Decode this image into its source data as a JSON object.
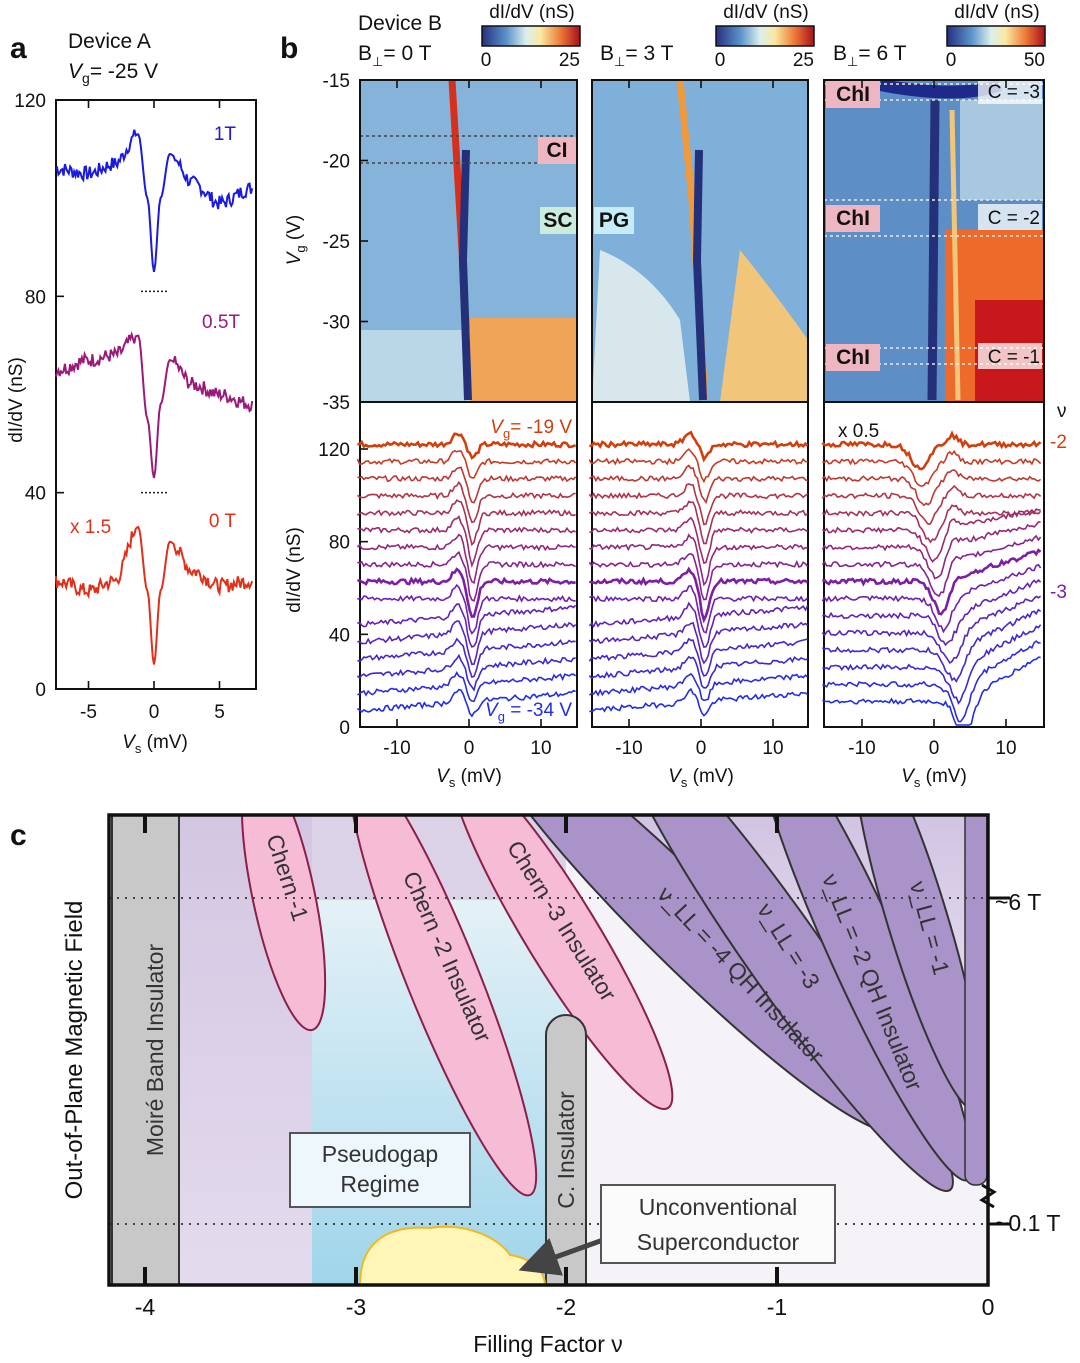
{
  "panel_labels": {
    "a": "a",
    "b": "b",
    "c": "c"
  },
  "chart_data": [
    {
      "id": "panel-a",
      "type": "line",
      "title": "Device  A",
      "subtitle": {
        "main": "V",
        "sub": "g",
        "rest": "= -25 V"
      },
      "xlabel": {
        "main": "V",
        "sub": "s",
        "rest": " (mV)"
      },
      "ylabel": "dI/dV (nS)",
      "xlim": [
        -7.5,
        7.5
      ],
      "ylim": [
        0,
        120
      ],
      "xticks": [
        "-5",
        "0",
        "5"
      ],
      "xtick_values": [
        -5,
        0,
        5
      ],
      "yticks": [
        "0",
        "40",
        "80",
        "120"
      ],
      "ytick_values": [
        0,
        40,
        80,
        120
      ],
      "annotation": "x 1.5",
      "x": [
        -7.5,
        -5,
        -3,
        -1.2,
        -0.5,
        0,
        0.5,
        1.2,
        3,
        5,
        7.5
      ],
      "series": [
        {
          "name": "1T",
          "color": "#1a1ae0",
          "values": [
            106,
            105,
            107,
            113,
            100,
            85,
            100,
            109,
            103,
            99,
            102
          ]
        },
        {
          "name": "0.5T",
          "color": "#9a1a7a",
          "values": [
            65,
            67,
            68,
            72,
            55,
            43,
            58,
            67,
            62,
            60,
            58
          ]
        },
        {
          "name": "0 T",
          "color": "#e0301a",
          "values": [
            22,
            20,
            22,
            33,
            20,
            5,
            20,
            30,
            24,
            21,
            22
          ]
        }
      ]
    },
    {
      "id": "panel-b-maps",
      "type": "heatmap",
      "device": "Device  B",
      "ylabel": {
        "main": "V",
        "sub": "g",
        "rest": " (V)"
      },
      "ylim": [
        -35,
        -15
      ],
      "yticks": [
        "-15",
        "-20",
        "-25",
        "-30",
        "-35"
      ],
      "colorbar_label": "dI/dV (nS)",
      "maps": [
        {
          "field": {
            "pre": "B",
            "sub": "⊥",
            "post": "= 0 T"
          },
          "colorbar": [
            "0",
            "25"
          ],
          "labels": [
            "CI",
            "SC"
          ]
        },
        {
          "field": {
            "pre": "B",
            "sub": "⊥",
            "post": "= 3 T"
          },
          "colorbar": [
            "0",
            "25"
          ],
          "labels": [
            "PG"
          ]
        },
        {
          "field": {
            "pre": "B",
            "sub": "⊥",
            "post": "= 6 T"
          },
          "colorbar": [
            "0",
            "50"
          ],
          "labels": [
            "ChI",
            "ChI",
            "ChI",
            "C = -3",
            "C = -2",
            "C = -1"
          ]
        }
      ]
    },
    {
      "id": "panel-b-traces",
      "type": "line",
      "ylabel": "dI/dV (nS)",
      "xlabel": {
        "main": "V",
        "sub": "s",
        "rest": " (mV)"
      },
      "xlim": [
        -15,
        15
      ],
      "ylim": [
        0,
        130
      ],
      "xticks": [
        "-10",
        "0",
        "10"
      ],
      "yticks": [
        "0",
        "40",
        "80",
        "120"
      ],
      "vg_values": [
        -19,
        -20,
        -21,
        -22,
        -23,
        -24,
        -25,
        -26,
        -27,
        -28,
        -29,
        -30,
        -31,
        -32,
        -33,
        -34
      ],
      "top_label": {
        "main": "V",
        "sub": "g",
        "rest": "= -19 V"
      },
      "bottom_label": {
        "main": "V",
        "sub": "g",
        "rest": " = -34 V"
      },
      "scale_note": "x 0.5",
      "nu_header": "ν",
      "nu_labels": [
        "-2",
        "-3"
      ],
      "colors": {
        "top": "#d0400f",
        "mid": "#7a1ea8",
        "bottom": "#1f2ee8"
      }
    },
    {
      "id": "panel-c",
      "type": "diagram",
      "xlabel": "Filling Factor ν",
      "ylabel": "Out-of-Plane Magnetic Field",
      "xticks": [
        "-4",
        "-3",
        "-2",
        "-1",
        "0"
      ],
      "field_marks": [
        "~6 T",
        "~0.1 T"
      ],
      "regions": {
        "moire": "Moiré Band Insulator",
        "chern1": "Chern -1",
        "chern2": "Chern -2 Insulator",
        "chern3": "Chern -3 Insulator",
        "qh4": "ν_LL = -4 QH Insulator",
        "qh3": "ν_LL = -3",
        "qh2": "ν_LL = -2 QH Insulator",
        "qh1": "ν_LL = -1",
        "cins": "C. Insulator",
        "pseudogap": [
          "Pseudogap",
          "Regime"
        ],
        "sc": [
          "Unconventional",
          "Superconductor"
        ]
      },
      "colors": {
        "chern": "#f6bcd6",
        "chern_edge": "#8a1f48",
        "qh": "#a993c8",
        "gray": "#c8c8c8",
        "sc": "#fff6b8",
        "sc_edge": "#f2b820",
        "blue": "#bfe3f0"
      }
    }
  ]
}
